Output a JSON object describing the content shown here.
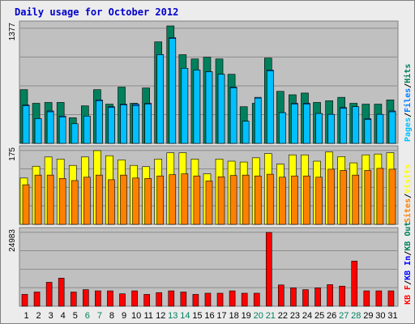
{
  "chart_data": {
    "type": "bar",
    "title": "Daily usage for October 2012",
    "days": [
      "1",
      "2",
      "3",
      "4",
      "5",
      "6",
      "7",
      "8",
      "9",
      "10",
      "11",
      "12",
      "13",
      "14",
      "15",
      "16",
      "17",
      "18",
      "19",
      "20",
      "21",
      "22",
      "23",
      "24",
      "25",
      "26",
      "27",
      "28",
      "29",
      "30",
      "31"
    ],
    "weekend_days": [
      "6",
      "7",
      "13",
      "14",
      "20",
      "21",
      "27",
      "28"
    ],
    "colors": {
      "title": "#0000cc",
      "panel_bg": "#c0c0c0",
      "border": "#808080",
      "grid": "#8c8c8c",
      "hits": "#00805c",
      "files": "#0080ff",
      "pages": "#00c0ff",
      "visits": "#ffff00",
      "sites": "#ff8000",
      "kb_out": "#ff8000",
      "kb_in": "#0000ff",
      "kb_f": "#ff0000",
      "weekday_label": "#000000",
      "weekend_label": "#00805c"
    },
    "panels": [
      {
        "name": "hits-files-pages",
        "max_label": "1377",
        "ylim": [
          0,
          1377
        ],
        "legend": [
          {
            "text": "Pages",
            "color": "#00c0ff"
          },
          {
            "text": "/",
            "color": "#000000"
          },
          {
            "text": "Files",
            "color": "#0080ff"
          },
          {
            "text": "/",
            "color": "#000000"
          },
          {
            "text": "Hits",
            "color": "#00805c"
          }
        ],
        "series": [
          {
            "name": "Hits",
            "color": "#00805c",
            "values": [
              630,
              470,
              480,
              480,
              300,
              440,
              630,
              460,
              660,
              470,
              650,
              1190,
              1377,
              1040,
              990,
              1010,
              990,
              810,
              430,
              470,
              1000,
              610,
              570,
              590,
              480,
              500,
              540,
              470,
              460,
              460,
              510
            ]
          },
          {
            "name": "Files",
            "color": "#0080ff",
            "values": [
              450,
              290,
              380,
              320,
              230,
              320,
              510,
              430,
              460,
              460,
              470,
              1040,
              1240,
              880,
              860,
              840,
              810,
              660,
              260,
              540,
              860,
              360,
              470,
              470,
              350,
              340,
              420,
              430,
              290,
              340,
              380
            ]
          },
          {
            "name": "Pages",
            "color": "#00c0ff",
            "values": [
              440,
              290,
              370,
              310,
              230,
              320,
              500,
              420,
              450,
              440,
              460,
              1040,
              1230,
              880,
              860,
              840,
              810,
              650,
              260,
              530,
              850,
              360,
              460,
              460,
              350,
              340,
              410,
              430,
              280,
              340,
              370
            ]
          }
        ]
      },
      {
        "name": "visits-sites",
        "max_label": "175",
        "ylim": [
          0,
          175
        ],
        "legend": [
          {
            "text": "Sites",
            "color": "#ff8000"
          },
          {
            "text": "/",
            "color": "#000000"
          },
          {
            "text": "Visits",
            "color": "#ffff00"
          }
        ],
        "series": [
          {
            "name": "Visits",
            "color": "#ffff00",
            "values": [
              110,
              138,
              160,
              155,
              140,
              160,
              175,
              163,
              153,
              140,
              137,
              155,
              170,
              170,
              155,
              120,
              155,
              150,
              148,
              158,
              168,
              143,
              165,
              165,
              150,
              172,
              161,
              146,
              165,
              167,
              170
            ]
          },
          {
            "name": "Sites",
            "color": "#ff8000",
            "values": [
              94,
              117,
              117,
              109,
              104,
              112,
              117,
              106,
              117,
              110,
              109,
              115,
              118,
              120,
              115,
              103,
              113,
              116,
              117,
              115,
              119,
              112,
              115,
              115,
              112,
              131,
              128,
              117,
              128,
              133,
              131
            ]
          }
        ]
      },
      {
        "name": "kbytes",
        "max_label": "24983",
        "ylim": [
          0,
          24983
        ],
        "legend": [
          {
            "text": "KB F",
            "color": "#ff0000"
          },
          {
            "text": "/",
            "color": "#000000"
          },
          {
            "text": "KB In",
            "color": "#0000ff"
          },
          {
            "text": "/",
            "color": "#000000"
          },
          {
            "text": "KB Out",
            "color": "#00805c"
          }
        ],
        "series": [
          {
            "name": "KB F",
            "color": "#ff0000",
            "values": [
              4000,
              4800,
              8100,
              9500,
              4800,
              5600,
              5200,
              5200,
              4200,
              5200,
              4000,
              4600,
              5200,
              4800,
              4000,
              4400,
              4400,
              5200,
              4400,
              4400,
              24983,
              7200,
              6200,
              5600,
              6200,
              7300,
              6800,
              15300,
              5200,
              5200,
              5200
            ]
          }
        ]
      }
    ]
  }
}
